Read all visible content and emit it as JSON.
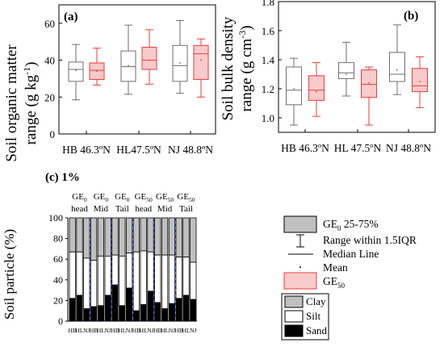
{
  "chart_data": [
    {
      "type": "box",
      "panel": "(a)",
      "ylabel_line1": "Soil organic matter",
      "ylabel_line2_prefix": "range (g kg",
      "ylabel_line2_sup": "-1",
      "ylabel_line2_suffix": ")",
      "categories": [
        "HB 46.3ºN",
        "HL47.5ºN",
        "NJ 48.8ºN"
      ],
      "ylim": [
        0,
        70
      ],
      "yticks": [
        "0",
        "20",
        "40",
        "60"
      ],
      "series": [
        {
          "group": "GE0",
          "color": "#6e6e6e",
          "fill": "#ffffff",
          "boxes": [
            {
              "whisker_low": 18.5,
              "q1": 28.5,
              "median": 35,
              "mean": 34.5,
              "q3": 39,
              "whisker_high": 48.5
            },
            {
              "whisker_low": 21.5,
              "q1": 28.5,
              "median": 36.5,
              "mean": 37,
              "q3": 45,
              "whisker_high": 59
            },
            {
              "whisker_low": 22,
              "q1": 28.5,
              "median": 37,
              "mean": 38.5,
              "q3": 48,
              "whisker_high": 61.5
            }
          ]
        },
        {
          "group": "GE50",
          "color": "#ee3b3b",
          "fill": "#f8caca",
          "boxes": [
            {
              "whisker_low": 26.5,
              "q1": 29.5,
              "median": 34.5,
              "mean": 34,
              "q3": 38.5,
              "whisker_high": 46.5
            },
            {
              "whisker_low": 27,
              "q1": 35,
              "median": 40,
              "mean": 40,
              "q3": 47,
              "whisker_high": 56.5
            },
            {
              "whisker_low": 20,
              "q1": 29.5,
              "median": 43.5,
              "mean": 40,
              "q3": 48,
              "whisker_high": 51.5
            }
          ]
        }
      ]
    },
    {
      "type": "box",
      "panel": "(b)",
      "ylabel_line1": "Soil bulk density",
      "ylabel_line2_prefix": "range (g cm",
      "ylabel_line2_sup": "-3",
      "ylabel_line2_suffix": ")",
      "categories": [
        "HB 46.3ºN",
        "HL 47.5ºN",
        "NJ 48.8ºN"
      ],
      "ylim": [
        0.9,
        1.8
      ],
      "yticks": [
        "1.0",
        "1.2",
        "1.4",
        "1.6",
        "1.8"
      ],
      "series": [
        {
          "group": "GE0",
          "color": "#6e6e6e",
          "fill": "#ffffff",
          "boxes": [
            {
              "whisker_low": 0.95,
              "q1": 1.09,
              "median": 1.19,
              "mean": 1.2,
              "q3": 1.35,
              "whisker_high": 1.41
            },
            {
              "whisker_low": 1.15,
              "q1": 1.27,
              "median": 1.31,
              "mean": 1.3,
              "q3": 1.38,
              "whisker_high": 1.52
            },
            {
              "whisker_low": 1.16,
              "q1": 1.25,
              "median": 1.3,
              "mean": 1.33,
              "q3": 1.45,
              "whisker_high": 1.64
            }
          ]
        },
        {
          "group": "GE50",
          "color": "#ee3b3b",
          "fill": "#f8caca",
          "boxes": [
            {
              "whisker_low": 1.01,
              "q1": 1.12,
              "median": 1.19,
              "mean": 1.18,
              "q3": 1.29,
              "whisker_high": 1.38
            },
            {
              "whisker_low": 0.95,
              "q1": 1.14,
              "median": 1.23,
              "mean": 1.24,
              "q3": 1.33,
              "whisker_high": 1.35
            },
            {
              "whisker_low": 1.07,
              "q1": 1.18,
              "median": 1.22,
              "mean": 1.25,
              "q3": 1.34,
              "whisker_high": 1.42
            }
          ]
        }
      ]
    },
    {
      "type": "stacked_bar",
      "panel": "(c) 1%",
      "ylabel": "Soil particle (%)",
      "ylim": [
        0,
        100
      ],
      "yticks": [
        "0",
        "20",
        "40",
        "60",
        "80",
        "100"
      ],
      "stack_order": [
        "Sand",
        "Silt",
        "Clay"
      ],
      "stack_colors": {
        "Sand": "#000000",
        "Silt": "#ffffff",
        "Clay": "#c0c0c0"
      },
      "group_labels": [
        {
          "main": "GE",
          "sub": "0",
          "second": "head"
        },
        {
          "main": "GE",
          "sub": "0",
          "second": "Mid"
        },
        {
          "main": "GE",
          "sub": "0",
          "second": "Tail"
        },
        {
          "main": "GE",
          "sub": "50",
          "second": "head"
        },
        {
          "main": "GE",
          "sub": "50",
          "second": "Mid"
        },
        {
          "main": "GE",
          "sub": "50",
          "second": "Tail"
        }
      ],
      "xtick_labels": [
        "HB",
        "HL",
        "NJ",
        "HB",
        "HL",
        "NJ",
        "HB",
        "HL",
        "NJ",
        "HB",
        "HL",
        "NJ",
        "HB",
        "HL",
        "NJ",
        "HB",
        "HL",
        "NJ"
      ],
      "sand": [
        22,
        25,
        12,
        14,
        15,
        25,
        35,
        15,
        32,
        10,
        16,
        29,
        18,
        12,
        17,
        22,
        25,
        21
      ],
      "silt": [
        45,
        42,
        49,
        45,
        48,
        38,
        29,
        48,
        34,
        57,
        52,
        38,
        46,
        52,
        47,
        40,
        37,
        36
      ]
    }
  ],
  "legend_box": {
    "ge0_main": "GE",
    "ge0_sub": "0",
    "ge0_rest": " 25-75%",
    "range": "Range within 1.5IQR",
    "median": "Median Line",
    "mean": "Mean",
    "ge50_main": "GE",
    "ge50_sub": "50",
    "colors": {
      "ge0_fill": "#c0c0c0",
      "ge50_fill": "#f8caca",
      "ge50_stroke": "#ee3b3b"
    }
  },
  "legend_particle": [
    "Clay",
    "Silt",
    "Sand"
  ]
}
